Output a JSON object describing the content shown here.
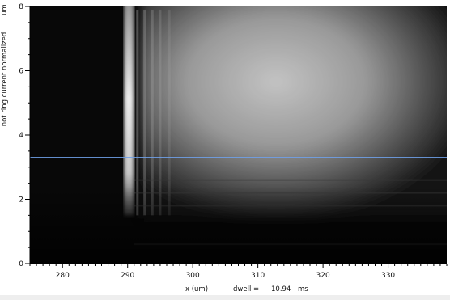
{
  "chart_data": {
    "type": "heatmap",
    "colormap": "grayscale",
    "xlabel": "x (um)",
    "ylabel": "not ring current normalized",
    "y_unit_label": "um",
    "annotation": {
      "label": "dwell =",
      "value": "10.94",
      "unit": "ms"
    },
    "xlim": [
      275,
      339
    ],
    "ylim": [
      0,
      8
    ],
    "x_ticks": [
      280,
      290,
      300,
      310,
      320,
      330
    ],
    "y_ticks": [
      0,
      2,
      4,
      6,
      8
    ],
    "cursor_line": {
      "y": 3.3,
      "color": "#6fa0e8"
    },
    "background_color": "#080808",
    "features": [
      {
        "name": "bright-edge",
        "x": 290.2,
        "y_range": [
          1.5,
          8
        ],
        "intensity": 0.97
      },
      {
        "name": "broad-glow",
        "x_range": [
          292,
          339
        ],
        "y_range": [
          1.4,
          8
        ],
        "peak_x": 312,
        "peak_y": 5.8,
        "intensity": 0.8
      }
    ]
  }
}
